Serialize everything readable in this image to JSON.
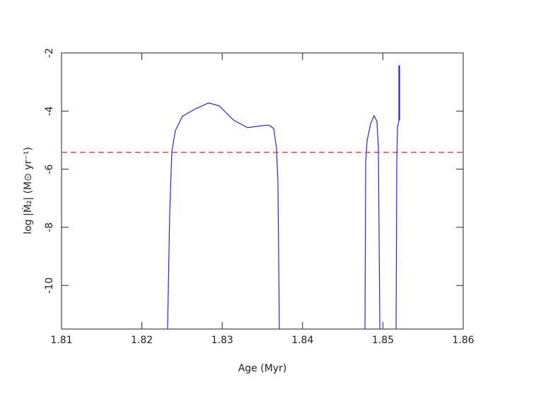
{
  "chart_data": {
    "type": "line",
    "xlabel": "Age  (Myr)",
    "ylabel": "log |Ṁ₂|  (M⊙ yr⁻¹)",
    "xlim": [
      1.81,
      1.86
    ],
    "xticks": [
      1.81,
      1.82,
      1.83,
      1.84,
      1.85,
      1.86
    ],
    "ylim": [
      -11.5,
      -2
    ],
    "yticks": [
      -2,
      -4,
      -6,
      -8,
      -10
    ],
    "grid": false,
    "series": [
      {
        "color": "#2323e6",
        "dash": "solid",
        "x": [
          1.8232,
          1.82347,
          1.82373,
          1.82417,
          1.82505,
          1.82655,
          1.8283,
          1.82963,
          1.8314,
          1.83315,
          1.83447,
          1.83579,
          1.83641,
          1.83676,
          1.83694,
          1.83711,
          1.8424,
          1.84777,
          1.84786,
          1.84803,
          1.84847,
          1.84891,
          1.84926,
          1.84944,
          1.84962,
          1.8506,
          1.85164,
          1.85173,
          1.85182,
          1.85199,
          1.85199,
          1.85208,
          1.85208
        ],
        "values": [
          -11.5,
          -7.46,
          -5.4,
          -4.67,
          -4.18,
          -3.94,
          -3.72,
          -3.82,
          -4.31,
          -4.57,
          -4.52,
          -4.48,
          -4.6,
          -5.28,
          -6.49,
          -11.5,
          null,
          -11.5,
          -5.76,
          -5.03,
          -4.43,
          -4.16,
          -4.35,
          -5.28,
          -11.5,
          null,
          -11.5,
          -5.76,
          -4.55,
          -4.35,
          -2.44,
          -2.44,
          -4.31
        ]
      },
      {
        "color": "#e62323",
        "dash": "dashed",
        "x": [
          1.81,
          1.86
        ],
        "values": [
          -5.42,
          -5.42
        ]
      }
    ]
  }
}
